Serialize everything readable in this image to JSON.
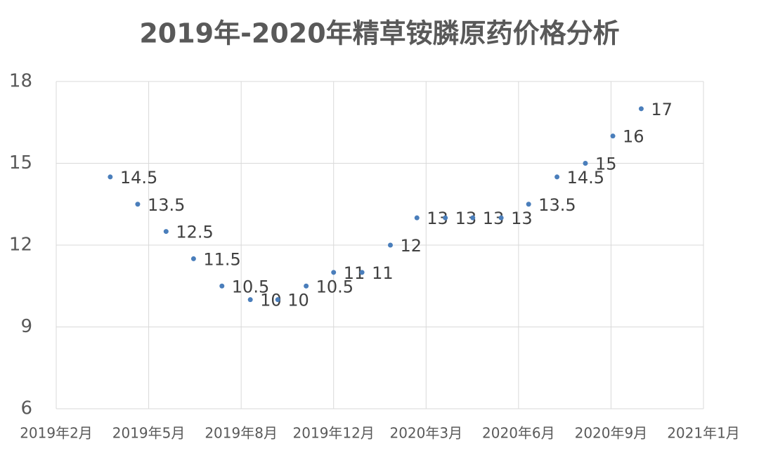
{
  "chart_data": {
    "type": "scatter",
    "title": "2019年-2020年精草铵膦原药价格分析",
    "x": [
      "2019-04",
      "2019-05",
      "2019-06",
      "2019-07",
      "2019-08",
      "2019-09",
      "2019-10",
      "2019-11",
      "2019-12",
      "2020-01",
      "2020-02",
      "2020-03",
      "2020-04",
      "2020-05",
      "2020-06",
      "2020-07",
      "2020-08",
      "2020-09",
      "2020-10",
      "2020-11"
    ],
    "values": [
      14.5,
      13.5,
      12.5,
      11.5,
      10.5,
      10,
      10,
      10.5,
      11,
      11,
      12,
      13,
      13,
      13,
      13,
      13.5,
      14.5,
      15,
      16,
      17
    ],
    "color": "#4a7ebb",
    "xlim": [
      "2019-02-01",
      "2021-01-08"
    ],
    "xticks": [
      {
        "value": "2019-02-01",
        "label": "2019年2月"
      },
      {
        "value": "2019-05-13",
        "label": "2019年5月"
      },
      {
        "value": "2019-08-22",
        "label": "2019年8月"
      },
      {
        "value": "2019-12-01",
        "label": "2019年12月"
      },
      {
        "value": "2020-03-11",
        "label": "2020年3月"
      },
      {
        "value": "2020-06-20",
        "label": "2020年6月"
      },
      {
        "value": "2020-09-29",
        "label": "2020年9月"
      },
      {
        "value": "2021-01-08",
        "label": "2021年1月"
      }
    ],
    "ylim": [
      6,
      18
    ],
    "yticks": [
      6,
      9,
      12,
      15,
      18
    ],
    "grid": true
  }
}
